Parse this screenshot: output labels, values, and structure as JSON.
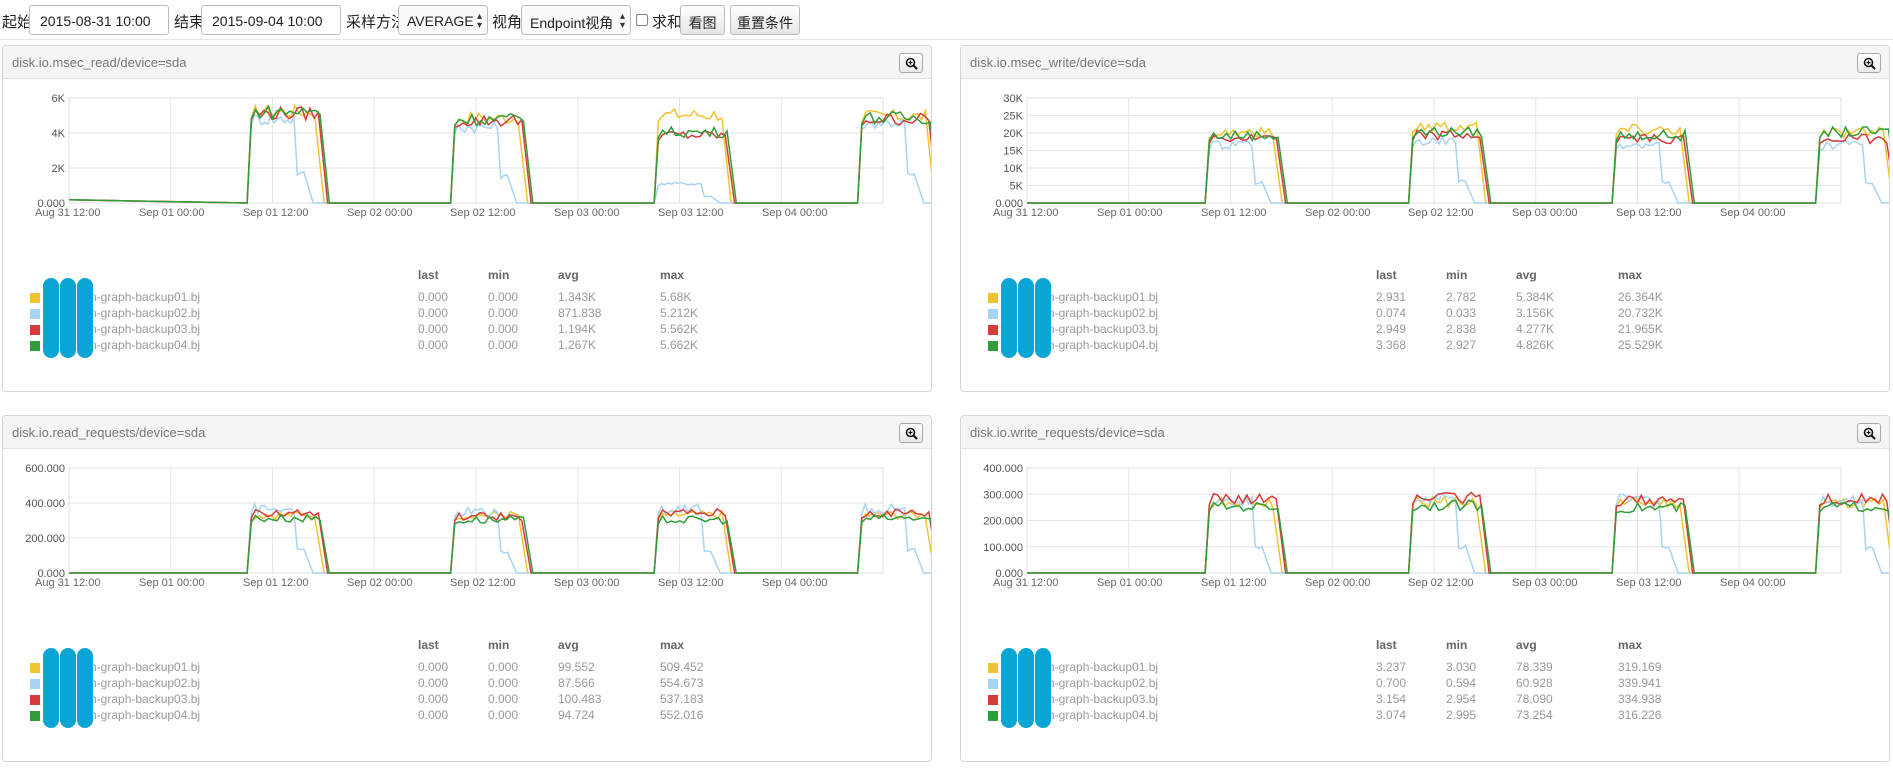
{
  "toolbar": {
    "start_label": "起始",
    "start_value": "2015-08-31 10:00",
    "end_label": "结束",
    "end_value": "2015-09-04 10:00",
    "sampling_label": "采样方法",
    "sampling_value": "AVERAGE",
    "view_label": "视角",
    "view_value": "Endpoint视角",
    "sum_label": "求和",
    "view_button": "看图",
    "reset_button": "重置条件"
  },
  "series_colors": [
    "#f0c330",
    "#a8d4f3",
    "#d63b3b",
    "#2f9e3a"
  ],
  "panels": [
    {
      "title": "disk.io.msec_read/device=sda",
      "chart_data": {
        "type": "line",
        "x_ticks": [
          "Aug 31 12:00",
          "Sep 01 00:00",
          "Sep 01 12:00",
          "Sep 02 00:00",
          "Sep 02 12:00",
          "Sep 03 00:00",
          "Sep 03 12:00",
          "Sep 04 00:00"
        ],
        "y_ticks": [
          "6K",
          "4K",
          "2K",
          "0.000"
        ],
        "ylim": [
          0,
          6000
        ],
        "plateau": [
          5600,
          5250,
          4400,
          5400
        ],
        "series": [
          {
            "name": "n-graph-backup01.bj",
            "values": [
              5680,
              5300,
              5500,
              5400
            ]
          },
          {
            "name": "n-graph-backup02.bj",
            "values": [
              5212,
              4700,
              1200,
              5000
            ]
          },
          {
            "name": "n-graph-backup03.bj",
            "values": [
              5562,
              5100,
              4200,
              5200
            ]
          },
          {
            "name": "n-graph-backup04.bj",
            "values": [
              5662,
              5200,
              4400,
              5300
            ]
          }
        ]
      },
      "legend": {
        "headers": [
          "last",
          "min",
          "avg",
          "max"
        ],
        "rows": [
          {
            "name": "n-graph-backup01.bj",
            "last": "0.000",
            "min": "0.000",
            "avg": "1.343K",
            "max": "5.68K"
          },
          {
            "name": "n-graph-backup02.bj",
            "last": "0.000",
            "min": "0.000",
            "avg": "871.838",
            "max": "5.212K"
          },
          {
            "name": "n-graph-backup03.bj",
            "last": "0.000",
            "min": "0.000",
            "avg": "1.194K",
            "max": "5.562K"
          },
          {
            "name": "n-graph-backup04.bj",
            "last": "0.000",
            "min": "0.000",
            "avg": "1.267K",
            "max": "5.662K"
          }
        ]
      }
    },
    {
      "title": "disk.io.msec_write/device=sda",
      "chart_data": {
        "type": "line",
        "x_ticks": [
          "Aug 31 12:00",
          "Sep 01 00:00",
          "Sep 01 12:00",
          "Sep 02 00:00",
          "Sep 02 12:00",
          "Sep 03 00:00",
          "Sep 03 12:00",
          "Sep 04 00:00"
        ],
        "y_ticks": [
          "30K",
          "25K",
          "20K",
          "15K",
          "10K",
          "5K",
          "0.000"
        ],
        "ylim": [
          0,
          30000
        ],
        "series": [
          {
            "name": "n-graph-backup01.bj",
            "values": [
              22000,
              24000,
              23000,
              22000
            ]
          },
          {
            "name": "n-graph-backup02.bj",
            "values": [
              18000,
              19000,
              18000,
              18000
            ]
          },
          {
            "name": "n-graph-backup03.bj",
            "values": [
              20000,
              21000,
              20000,
              20000
            ]
          },
          {
            "name": "n-graph-backup04.bj",
            "values": [
              21000,
              22000,
              21000,
              22000
            ]
          }
        ]
      },
      "legend": {
        "headers": [
          "last",
          "min",
          "avg",
          "max"
        ],
        "rows": [
          {
            "name": "n-graph-backup01.bj",
            "last": "2.931",
            "min": "2.782",
            "avg": "5.384K",
            "max": "26.364K"
          },
          {
            "name": "n-graph-backup02.bj",
            "last": "0.074",
            "min": "0.033",
            "avg": "3.156K",
            "max": "20.732K"
          },
          {
            "name": "n-graph-backup03.bj",
            "last": "2.949",
            "min": "2.838",
            "avg": "4.277K",
            "max": "21.965K"
          },
          {
            "name": "n-graph-backup04.bj",
            "last": "3.368",
            "min": "2.927",
            "avg": "4.826K",
            "max": "25.529K"
          }
        ]
      }
    },
    {
      "title": "disk.io.read_requests/device=sda",
      "chart_data": {
        "type": "line",
        "x_ticks": [
          "Aug 31 12:00",
          "Sep 01 00:00",
          "Sep 01 12:00",
          "Sep 02 00:00",
          "Sep 02 12:00",
          "Sep 03 00:00",
          "Sep 03 12:00",
          "Sep 04 00:00"
        ],
        "y_ticks": [
          "600.000",
          "400.000",
          "200.000",
          "0.000"
        ],
        "ylim": [
          0,
          600
        ],
        "series": [
          {
            "name": "n-graph-backup01.bj",
            "values": [
              360,
              360,
              360,
              360
            ]
          },
          {
            "name": "n-graph-backup02.bj",
            "values": [
              400,
              380,
              400,
              400
            ]
          },
          {
            "name": "n-graph-backup03.bj",
            "values": [
              370,
              350,
              370,
              370
            ]
          },
          {
            "name": "n-graph-backup04.bj",
            "values": [
              340,
              330,
              330,
              340
            ]
          }
        ]
      },
      "legend": {
        "headers": [
          "last",
          "min",
          "avg",
          "max"
        ],
        "rows": [
          {
            "name": "n-graph-backup01.bj",
            "last": "0.000",
            "min": "0.000",
            "avg": "99.552",
            "max": "509.452"
          },
          {
            "name": "n-graph-backup02.bj",
            "last": "0.000",
            "min": "0.000",
            "avg": "87.566",
            "max": "554.673"
          },
          {
            "name": "n-graph-backup03.bj",
            "last": "0.000",
            "min": "0.000",
            "avg": "100.483",
            "max": "537.183"
          },
          {
            "name": "n-graph-backup04.bj",
            "last": "0.000",
            "min": "0.000",
            "avg": "94.724",
            "max": "552.016"
          }
        ]
      }
    },
    {
      "title": "disk.io.write_requests/device=sda",
      "chart_data": {
        "type": "line",
        "x_ticks": [
          "Aug 31 12:00",
          "Sep 01 00:00",
          "Sep 01 12:00",
          "Sep 02 00:00",
          "Sep 02 12:00",
          "Sep 03 00:00",
          "Sep 03 12:00",
          "Sep 04 00:00"
        ],
        "y_ticks": [
          "400.000",
          "300.000",
          "200.000",
          "100.000",
          "0.000"
        ],
        "ylim": [
          0,
          400
        ],
        "series": [
          {
            "name": "n-graph-backup01.bj",
            "values": [
              290,
              295,
              290,
              290
            ]
          },
          {
            "name": "n-graph-backup02.bj",
            "values": [
              300,
              305,
              305,
              300
            ]
          },
          {
            "name": "n-graph-backup03.bj",
            "values": [
              305,
              310,
              300,
              305
            ]
          },
          {
            "name": "n-graph-backup04.bj",
            "values": [
              275,
              280,
              270,
              275
            ]
          }
        ]
      },
      "legend": {
        "headers": [
          "last",
          "min",
          "avg",
          "max"
        ],
        "rows": [
          {
            "name": "n-graph-backup01.bj",
            "last": "3.237",
            "min": "3.030",
            "avg": "78.339",
            "max": "319.169"
          },
          {
            "name": "n-graph-backup02.bj",
            "last": "0.700",
            "min": "0.594",
            "avg": "60.928",
            "max": "339.941"
          },
          {
            "name": "n-graph-backup03.bj",
            "last": "3.154",
            "min": "2.954",
            "avg": "78.090",
            "max": "334.938"
          },
          {
            "name": "n-graph-backup04.bj",
            "last": "3.074",
            "min": "2.995",
            "avg": "73.254",
            "max": "316.226"
          }
        ]
      }
    }
  ]
}
